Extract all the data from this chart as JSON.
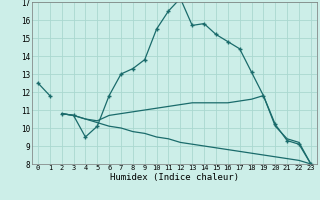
{
  "xlabel": "Humidex (Indice chaleur)",
  "bg_color": "#cceee8",
  "grid_color": "#aad8d0",
  "line_color": "#1a6b6b",
  "xlim": [
    -0.5,
    23.5
  ],
  "ylim": [
    8,
    17
  ],
  "xticks": [
    0,
    1,
    2,
    3,
    4,
    5,
    6,
    7,
    8,
    9,
    10,
    11,
    12,
    13,
    14,
    15,
    16,
    17,
    18,
    19,
    20,
    21,
    22,
    23
  ],
  "yticks": [
    8,
    9,
    10,
    11,
    12,
    13,
    14,
    15,
    16,
    17
  ],
  "series0_x": [
    0,
    1
  ],
  "series0_y": [
    12.5,
    11.8
  ],
  "series1_x": [
    2,
    3,
    4,
    5,
    6,
    7,
    8,
    9,
    10,
    11,
    12,
    13,
    14,
    15,
    16,
    17,
    18,
    19,
    20,
    21,
    22,
    23
  ],
  "series1_y": [
    10.8,
    10.7,
    9.5,
    10.1,
    11.8,
    13.0,
    13.3,
    13.8,
    15.5,
    16.5,
    17.2,
    15.7,
    15.8,
    15.2,
    14.8,
    14.4,
    13.1,
    11.8,
    10.2,
    9.3,
    9.1,
    8.0
  ],
  "series2_x": [
    2,
    3,
    4,
    5,
    6,
    7,
    8,
    9,
    10,
    11,
    12,
    13,
    14,
    15,
    16,
    17,
    18,
    19,
    20,
    21,
    22,
    23
  ],
  "series2_y": [
    10.8,
    10.7,
    10.5,
    10.4,
    10.7,
    10.8,
    10.9,
    11.0,
    11.1,
    11.2,
    11.3,
    11.4,
    11.4,
    11.4,
    11.4,
    11.5,
    11.6,
    11.8,
    10.1,
    9.4,
    9.2,
    8.0
  ],
  "series3_x": [
    2,
    3,
    4,
    5,
    6,
    7,
    8,
    9,
    10,
    11,
    12,
    13,
    14,
    15,
    16,
    17,
    18,
    19,
    20,
    21,
    22,
    23
  ],
  "series3_y": [
    10.8,
    10.7,
    10.5,
    10.3,
    10.1,
    10.0,
    9.8,
    9.7,
    9.5,
    9.4,
    9.2,
    9.1,
    9.0,
    8.9,
    8.8,
    8.7,
    8.6,
    8.5,
    8.4,
    8.3,
    8.2,
    8.0
  ]
}
